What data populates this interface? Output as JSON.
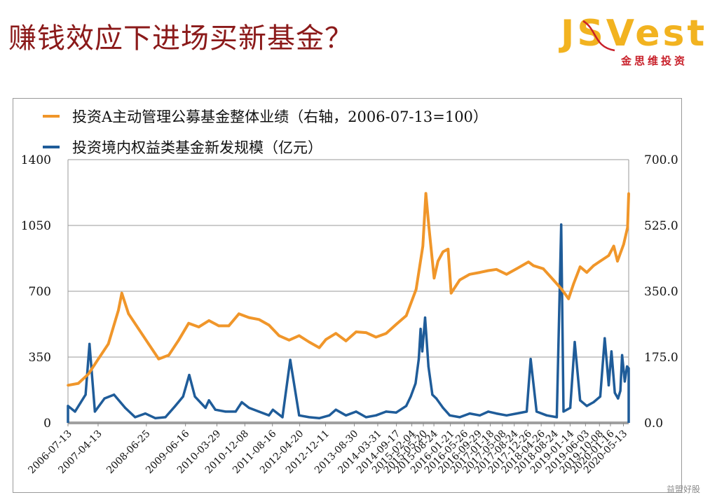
{
  "slide": {
    "title": "赚钱效应下进场买新基金？",
    "logo": {
      "word": "JSVest",
      "sub": "金思维投资"
    },
    "watermark": "益盟好股"
  },
  "chart_data": {
    "type": "line",
    "legend": [
      {
        "name": "投资A主动管理公募基金整体业绩（右轴，2006-07-13=100）",
        "color": "#f0962a",
        "kind": "line"
      },
      {
        "name": "投资境内权益类基金新发规模（亿元）",
        "color": "#1f5c99",
        "kind": "bar"
      }
    ],
    "left_axis": {
      "ticks": [
        "0",
        "350",
        "700",
        "1050",
        "1400"
      ],
      "min": 0,
      "max": 1400
    },
    "right_axis": {
      "ticks": [
        "0.0",
        "175.0",
        "350.0",
        "525.0",
        "700.0"
      ],
      "min": 0,
      "max": 700
    },
    "x_range": [
      "2006-07-13",
      "2020-06-30"
    ],
    "x_ticks": [
      "2006-07-13",
      "2007-04-13",
      "2008-06-25",
      "2009-06-16",
      "2010-03-29",
      "2010-12-08",
      "2011-08-16",
      "2012-04-20",
      "2012-12-11",
      "2013-08-30",
      "2014-03-31",
      "2014-09-17",
      "2015-02-04",
      "2015-05-20",
      "2015-08-24",
      "2016-01-21",
      "2016-05-26",
      "2016-09-29",
      "2017-01-18",
      "2017-05-08",
      "2017-08-24",
      "2017-12-26",
      "2018-04-26",
      "2018-08-24",
      "2019-01-14",
      "2019-06-03",
      "2019-10-08",
      "2020-01-16",
      "2020-05-13"
    ],
    "series": [
      {
        "name": "投资A主动管理公募基金整体业绩（右轴，2006-07-13=100）",
        "axis": "right",
        "points": [
          [
            "2006-07-13",
            100
          ],
          [
            "2006-10-15",
            105
          ],
          [
            "2007-01-15",
            130
          ],
          [
            "2007-04-15",
            170
          ],
          [
            "2007-07-15",
            210
          ],
          [
            "2007-10-15",
            300
          ],
          [
            "2007-11-15",
            345
          ],
          [
            "2008-01-15",
            290
          ],
          [
            "2008-04-15",
            250
          ],
          [
            "2008-07-15",
            210
          ],
          [
            "2008-10-15",
            170
          ],
          [
            "2009-01-15",
            180
          ],
          [
            "2009-04-15",
            220
          ],
          [
            "2009-07-15",
            265
          ],
          [
            "2009-10-15",
            255
          ],
          [
            "2010-01-15",
            272
          ],
          [
            "2010-04-15",
            258
          ],
          [
            "2010-07-15",
            258
          ],
          [
            "2010-10-15",
            290
          ],
          [
            "2011-01-15",
            280
          ],
          [
            "2011-04-15",
            275
          ],
          [
            "2011-07-15",
            260
          ],
          [
            "2011-10-15",
            232
          ],
          [
            "2012-01-15",
            220
          ],
          [
            "2012-04-15",
            232
          ],
          [
            "2012-07-15",
            215
          ],
          [
            "2012-10-15",
            200
          ],
          [
            "2012-12-15",
            222
          ],
          [
            "2013-03-15",
            238
          ],
          [
            "2013-06-15",
            218
          ],
          [
            "2013-09-15",
            242
          ],
          [
            "2013-12-15",
            240
          ],
          [
            "2014-03-15",
            228
          ],
          [
            "2014-06-15",
            238
          ],
          [
            "2014-09-15",
            262
          ],
          [
            "2014-12-15",
            285
          ],
          [
            "2015-03-15",
            355
          ],
          [
            "2015-05-15",
            470
          ],
          [
            "2015-06-12",
            610
          ],
          [
            "2015-07-10",
            520
          ],
          [
            "2015-08-26",
            385
          ],
          [
            "2015-09-30",
            430
          ],
          [
            "2015-11-15",
            455
          ],
          [
            "2015-12-31",
            462
          ],
          [
            "2016-01-28",
            345
          ],
          [
            "2016-04-15",
            380
          ],
          [
            "2016-07-15",
            395
          ],
          [
            "2016-10-15",
            400
          ],
          [
            "2016-12-31",
            405
          ],
          [
            "2017-03-15",
            408
          ],
          [
            "2017-06-15",
            395
          ],
          [
            "2017-09-15",
            410
          ],
          [
            "2017-12-31",
            428
          ],
          [
            "2018-02-15",
            418
          ],
          [
            "2018-05-15",
            410
          ],
          [
            "2018-08-15",
            380
          ],
          [
            "2018-10-30",
            355
          ],
          [
            "2018-12-31",
            330
          ],
          [
            "2019-02-15",
            370
          ],
          [
            "2019-04-15",
            415
          ],
          [
            "2019-06-15",
            400
          ],
          [
            "2019-08-15",
            418
          ],
          [
            "2019-10-15",
            430
          ],
          [
            "2019-12-31",
            445
          ],
          [
            "2020-02-15",
            470
          ],
          [
            "2020-03-20",
            430
          ],
          [
            "2020-05-15",
            475
          ],
          [
            "2020-06-20",
            520
          ],
          [
            "2020-06-30",
            610
          ]
        ]
      },
      {
        "name": "投资境内权益类基金新发规模（亿元）",
        "axis": "left",
        "points": [
          [
            "2006-07-13",
            90
          ],
          [
            "2006-09-15",
            60
          ],
          [
            "2006-12-20",
            150
          ],
          [
            "2007-01-25",
            420
          ],
          [
            "2007-03-15",
            60
          ],
          [
            "2007-06-10",
            130
          ],
          [
            "2007-09-05",
            150
          ],
          [
            "2007-12-15",
            80
          ],
          [
            "2008-03-15",
            30
          ],
          [
            "2008-06-15",
            50
          ],
          [
            "2008-09-15",
            25
          ],
          [
            "2008-12-15",
            30
          ],
          [
            "2009-03-15",
            90
          ],
          [
            "2009-05-25",
            140
          ],
          [
            "2009-07-20",
            255
          ],
          [
            "2009-09-10",
            140
          ],
          [
            "2009-12-15",
            80
          ],
          [
            "2010-01-15",
            120
          ],
          [
            "2010-03-15",
            70
          ],
          [
            "2010-06-15",
            60
          ],
          [
            "2010-09-15",
            60
          ],
          [
            "2010-11-10",
            110
          ],
          [
            "2011-01-15",
            80
          ],
          [
            "2011-04-15",
            60
          ],
          [
            "2011-07-15",
            40
          ],
          [
            "2011-08-20",
            70
          ],
          [
            "2011-11-15",
            30
          ],
          [
            "2012-01-25",
            335
          ],
          [
            "2012-04-15",
            40
          ],
          [
            "2012-07-15",
            30
          ],
          [
            "2012-10-15",
            25
          ],
          [
            "2013-01-15",
            40
          ],
          [
            "2013-03-15",
            70
          ],
          [
            "2013-06-15",
            40
          ],
          [
            "2013-09-15",
            60
          ],
          [
            "2013-12-15",
            30
          ],
          [
            "2014-03-15",
            40
          ],
          [
            "2014-06-15",
            60
          ],
          [
            "2014-09-15",
            55
          ],
          [
            "2014-12-15",
            90
          ],
          [
            "2015-01-25",
            140
          ],
          [
            "2015-03-10",
            210
          ],
          [
            "2015-04-08",
            340
          ],
          [
            "2015-04-25",
            500
          ],
          [
            "2015-05-10",
            380
          ],
          [
            "2015-06-05",
            560
          ],
          [
            "2015-07-05",
            300
          ],
          [
            "2015-08-10",
            150
          ],
          [
            "2015-09-15",
            130
          ],
          [
            "2015-11-15",
            80
          ],
          [
            "2016-01-15",
            40
          ],
          [
            "2016-04-15",
            30
          ],
          [
            "2016-07-15",
            50
          ],
          [
            "2016-10-15",
            40
          ],
          [
            "2016-12-31",
            60
          ],
          [
            "2017-03-15",
            50
          ],
          [
            "2017-06-15",
            40
          ],
          [
            "2017-09-15",
            50
          ],
          [
            "2017-12-15",
            60
          ],
          [
            "2018-01-20",
            340
          ],
          [
            "2018-03-15",
            60
          ],
          [
            "2018-06-15",
            40
          ],
          [
            "2018-09-15",
            30
          ],
          [
            "2018-10-25",
            1055
          ],
          [
            "2018-11-15",
            60
          ],
          [
            "2019-01-15",
            80
          ],
          [
            "2019-02-25",
            430
          ],
          [
            "2019-04-15",
            120
          ],
          [
            "2019-06-15",
            90
          ],
          [
            "2019-08-15",
            110
          ],
          [
            "2019-10-15",
            140
          ],
          [
            "2019-11-25",
            450
          ],
          [
            "2019-12-31",
            200
          ],
          [
            "2020-01-25",
            380
          ],
          [
            "2020-02-25",
            160
          ],
          [
            "2020-03-25",
            130
          ],
          [
            "2020-04-15",
            170
          ],
          [
            "2020-05-01",
            360
          ],
          [
            "2020-05-25",
            220
          ],
          [
            "2020-06-15",
            300
          ],
          [
            "2020-06-30",
            290
          ]
        ]
      }
    ]
  }
}
